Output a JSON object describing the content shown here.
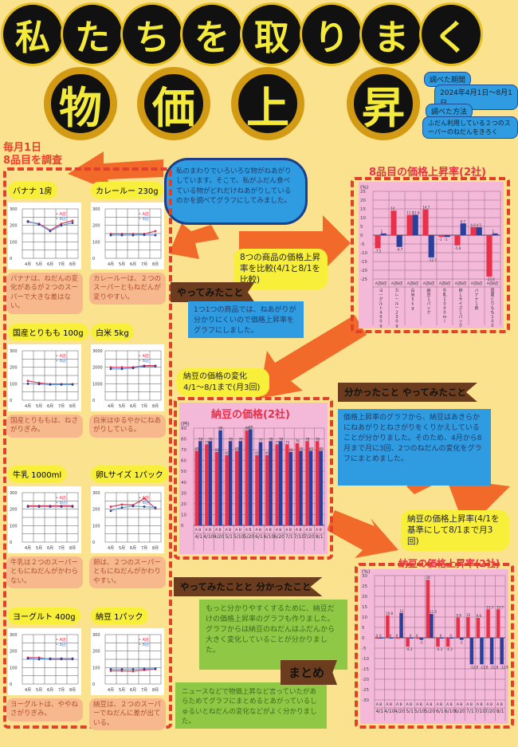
{
  "title": {
    "line1": [
      "私",
      "た",
      "ち",
      "を",
      "取",
      "り",
      "ま",
      "く"
    ],
    "line2": [
      "物",
      "価",
      "上",
      "昇"
    ]
  },
  "info": {
    "period_label": "調べた期間",
    "period": "2024年4月1日〜8月1日",
    "method_label": "調べた方法",
    "method": "ふだん利用している２つのスーパーのねだんをきろく"
  },
  "survey_header": [
    "毎月1日",
    "8品目を調査"
  ],
  "cloud": "私のまわりでいろいろな物がねあがりしています。そこで、私がふだん食べている物がどれだけねあがりしているのかを調べてグラフにしてみました。",
  "colors": {
    "background": "#fbe28e",
    "store_a": "#e8304a",
    "store_b": "#2a3f9a",
    "arrow": "#f26a2a"
  },
  "items": [
    {
      "label": "バナナ 1房",
      "comment": "バナナは、ねだんの変化があるが２つのスーパーで大きな差はない。",
      "ylim": [
        0,
        300
      ],
      "a": [
        220,
        210,
        170,
        210,
        228
      ],
      "b": [
        225,
        205,
        165,
        200,
        215
      ]
    },
    {
      "label": "カレールー 230g",
      "comment": "カレールーは、２つのスーパーともねだんが変りやすい。",
      "ylim": [
        0,
        300
      ],
      "a": [
        148,
        148,
        148,
        148,
        165
      ],
      "b": [
        140,
        140,
        140,
        142,
        140
      ]
    },
    {
      "label": "国産とりもも 100g",
      "comment": "国産とりももは、ねさがりぎみ。",
      "ylim": [
        0,
        300
      ],
      "a": [
        117,
        105,
        98,
        98,
        98
      ],
      "b": [
        100,
        98,
        95,
        95,
        95
      ]
    },
    {
      "label": "白米 5kg",
      "comment": "白米はゆるやかにねあがりしている。",
      "ylim": [
        0,
        3000
      ],
      "a": [
        2000,
        2000,
        2000,
        2100,
        2100
      ],
      "b": [
        1900,
        1900,
        1950,
        2050,
        2050
      ]
    },
    {
      "label": "牛乳 1000ml",
      "comment": "牛乳は２つのスーパーともにねだんがかわらない。",
      "ylim": [
        0,
        300
      ],
      "a": [
        220,
        220,
        220,
        220,
        220
      ],
      "b": [
        215,
        215,
        215,
        215,
        215
      ]
    },
    {
      "label": "卵Lサイズ 1パック",
      "comment": "卵は、２つのスーパーともにねだんがかわりやすい。",
      "ylim": [
        0,
        300
      ],
      "a": [
        215,
        228,
        225,
        265,
        205
      ],
      "b": [
        190,
        210,
        218,
        215,
        210
      ]
    },
    {
      "label": "ヨーグルト 400g",
      "comment": "ヨーグルトは、ややねさがりぎみ。",
      "ylim": [
        0,
        300
      ],
      "a": [
        160,
        160,
        150,
        150,
        150
      ],
      "b": [
        155,
        150,
        155,
        155,
        155
      ]
    },
    {
      "label": "納豆 1パック",
      "comment": "納豆は、２つのスーパーでねだんに差が出ている。",
      "ylim": [
        0,
        300
      ],
      "a": [
        80,
        80,
        78,
        85,
        90
      ],
      "b": [
        90,
        90,
        90,
        92,
        93
      ]
    }
  ],
  "mini_months": [
    "4月",
    "5月",
    "6月",
    "7月",
    "8月"
  ],
  "mini_unit": "(円)",
  "legend": {
    "a": "A店",
    "b": "B店"
  },
  "compare_note": "8つの商品の価格上昇率を比較(4/1と8/1を比較)",
  "tag_tried": "やってみたこと",
  "tried_text": "1つ1つの商品では、ねあがりが分かりにくいので価格上昇率をグラフにしました。",
  "natto_change_note": "納豆の価格の変化 4/1〜8/1まで(月3回)",
  "tag_learned_tried": "分かったこと やってみたこと",
  "learned_tried_text": "価格上昇率のグラフから、納豆はあきらかにねあがりとねさがりをくりかえしていることが分かりました。そのため、4月から8月まで月に3回、2つのねだんの変化をグラフにまとめました。",
  "natto_rate_note": "納豆の価格上昇率(4/1を基準にして8/1まで月3回)",
  "tag_tried_learned": "やってみたことと 分かったこと",
  "tried_learned_text": "もっと分かりやすくするために、納豆だけの価格上昇率のグラフも作りました。グラフからは納豆のねだんはふだんから大きく変化していることが分かりました。",
  "tag_summary": "まとめ",
  "summary_text": "ニュースなどで物価上昇など言っていたがあらためてグラフにまとめるとあがっているしゅるいとねだんの変化などがよく分かりました。",
  "chart_data": [
    {
      "type": "bar",
      "title": "8品目の価格上昇率(2社)",
      "ylabel": "(%)",
      "ylim": [
        -25,
        25
      ],
      "yticks": [
        -25,
        -20,
        -15,
        -10,
        -5,
        0,
        5,
        10,
        15,
        20,
        25
      ],
      "categories": [
        "ヨーグルト400g",
        "カレールー230g",
        "白米5kg",
        "納豆1パック",
        "牛乳1000ml",
        "卵Lサイズ1パック",
        "バナナ1房",
        "国産とりもも100g"
      ],
      "series": [
        {
          "name": "A店",
          "values": [
            -7.5,
            14,
            11.5,
            14.7,
            -1,
            -5.8,
            4.6,
            -23.6
          ]
        },
        {
          "name": "B店",
          "values": [
            1,
            -6.7,
            11.6,
            -12.7,
            -1,
            6.7,
            4.5,
            1
          ]
        }
      ]
    },
    {
      "type": "bar",
      "title": "納豆の価格(2社)",
      "ylabel": "(円)",
      "ylim": [
        0,
        90
      ],
      "yticks": [
        0,
        10,
        20,
        30,
        40,
        50,
        60,
        70,
        80,
        90
      ],
      "categories": [
        "4/1",
        "4/10",
        "4/20",
        "5/1",
        "5/10",
        "5/20",
        "6/1",
        "6/10",
        "6/20",
        "7/1",
        "7/10",
        "7/20",
        "8/1"
      ],
      "series": [
        {
          "name": "A",
          "values": [
            69,
            75,
            68,
            65,
            69,
            88,
            65,
            65,
            75,
            75,
            76,
            78,
            78
          ]
        },
        {
          "name": "B",
          "values": [
            78,
            78,
            88,
            78,
            78,
            89,
            77,
            78,
            78,
            68,
            69,
            69,
            69
          ]
        }
      ]
    },
    {
      "type": "bar",
      "title": "納豆の価格上昇率(2社)",
      "ylabel": "(%)",
      "ylim": [
        -30,
        30
      ],
      "yticks": [
        -30,
        -25,
        -20,
        -15,
        -10,
        -5,
        0,
        5,
        10,
        15,
        20,
        25,
        30
      ],
      "categories": [
        "4/1",
        "4/10",
        "4/20",
        "5/1",
        "5/10",
        "5/20",
        "6/1",
        "6/10",
        "6/20",
        "7/1",
        "7/10",
        "7/20",
        "8/1"
      ],
      "series": [
        {
          "name": "A",
          "values": [
            0,
            10.8,
            0,
            -4.3,
            0,
            28,
            -4.3,
            -4.3,
            9.8,
            10,
            9.6,
            13.7,
            13.7
          ]
        },
        {
          "name": "B",
          "values": [
            0,
            0,
            12,
            0,
            -1,
            11.5,
            0,
            0,
            -1,
            -12.8,
            -12.8,
            -12.8,
            -12.8
          ]
        }
      ]
    }
  ]
}
